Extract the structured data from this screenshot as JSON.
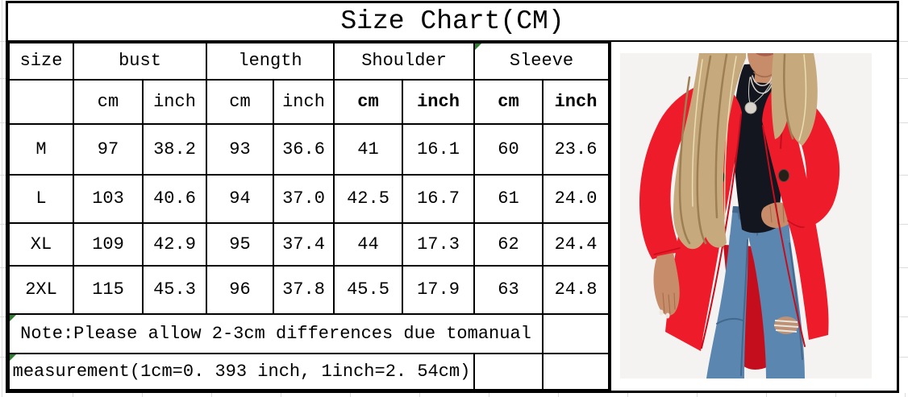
{
  "title": "Size Chart(CM)",
  "table": {
    "group_headers": [
      "size",
      "bust",
      "length",
      "Shoulder",
      "Sleeve"
    ],
    "unit_headers": [
      "cm",
      "inch",
      "cm",
      "inch",
      "cm",
      "inch",
      "cm",
      "inch"
    ],
    "rows": [
      [
        "M",
        "97",
        "38.2",
        "93",
        "36.6",
        "41",
        "16.1",
        "60",
        "23.6"
      ],
      [
        "L",
        "103",
        "40.6",
        "94",
        "37.0",
        "42.5",
        "16.7",
        "61",
        "24.0"
      ],
      [
        "XL",
        "109",
        "42.9",
        "95",
        "37.4",
        "44",
        "17.3",
        "62",
        "24.4"
      ],
      [
        "2XL",
        "115",
        "45.3",
        "96",
        "37.8",
        "45.5",
        "17.9",
        "63",
        "24.8"
      ]
    ],
    "note_line1": "Note:Please allow 2-3cm differences due tomanual",
    "note_line2": "measurement(1cm=0. 393 inch, 1inch=2. 54cm)"
  },
  "photo": {
    "alt": "Model wearing a bright red longline lapel coat over a black ribbed top, with blue ripped skinny jeans, one hand in pocket"
  },
  "colors": {
    "border_black": "#000000",
    "flag_green": "#2e7d32",
    "gridline_gray": "#dcdcdc",
    "photo_bg": "#f4f3f1",
    "coat_red": "#ee1b2b",
    "coat_red_dark": "#c40e1e",
    "top_black": "#13161f",
    "jeans_blue": "#5b86af",
    "jeans_dark": "#44688c",
    "hair_blonde": "#c6aa7e",
    "hair_shadow": "#9d7f53",
    "hair_light": "#ecdcb2",
    "skin": "#c78c69",
    "skin_dark": "#a26b4b",
    "lip": "#a85f4e",
    "silver": "#d8d4cb"
  }
}
